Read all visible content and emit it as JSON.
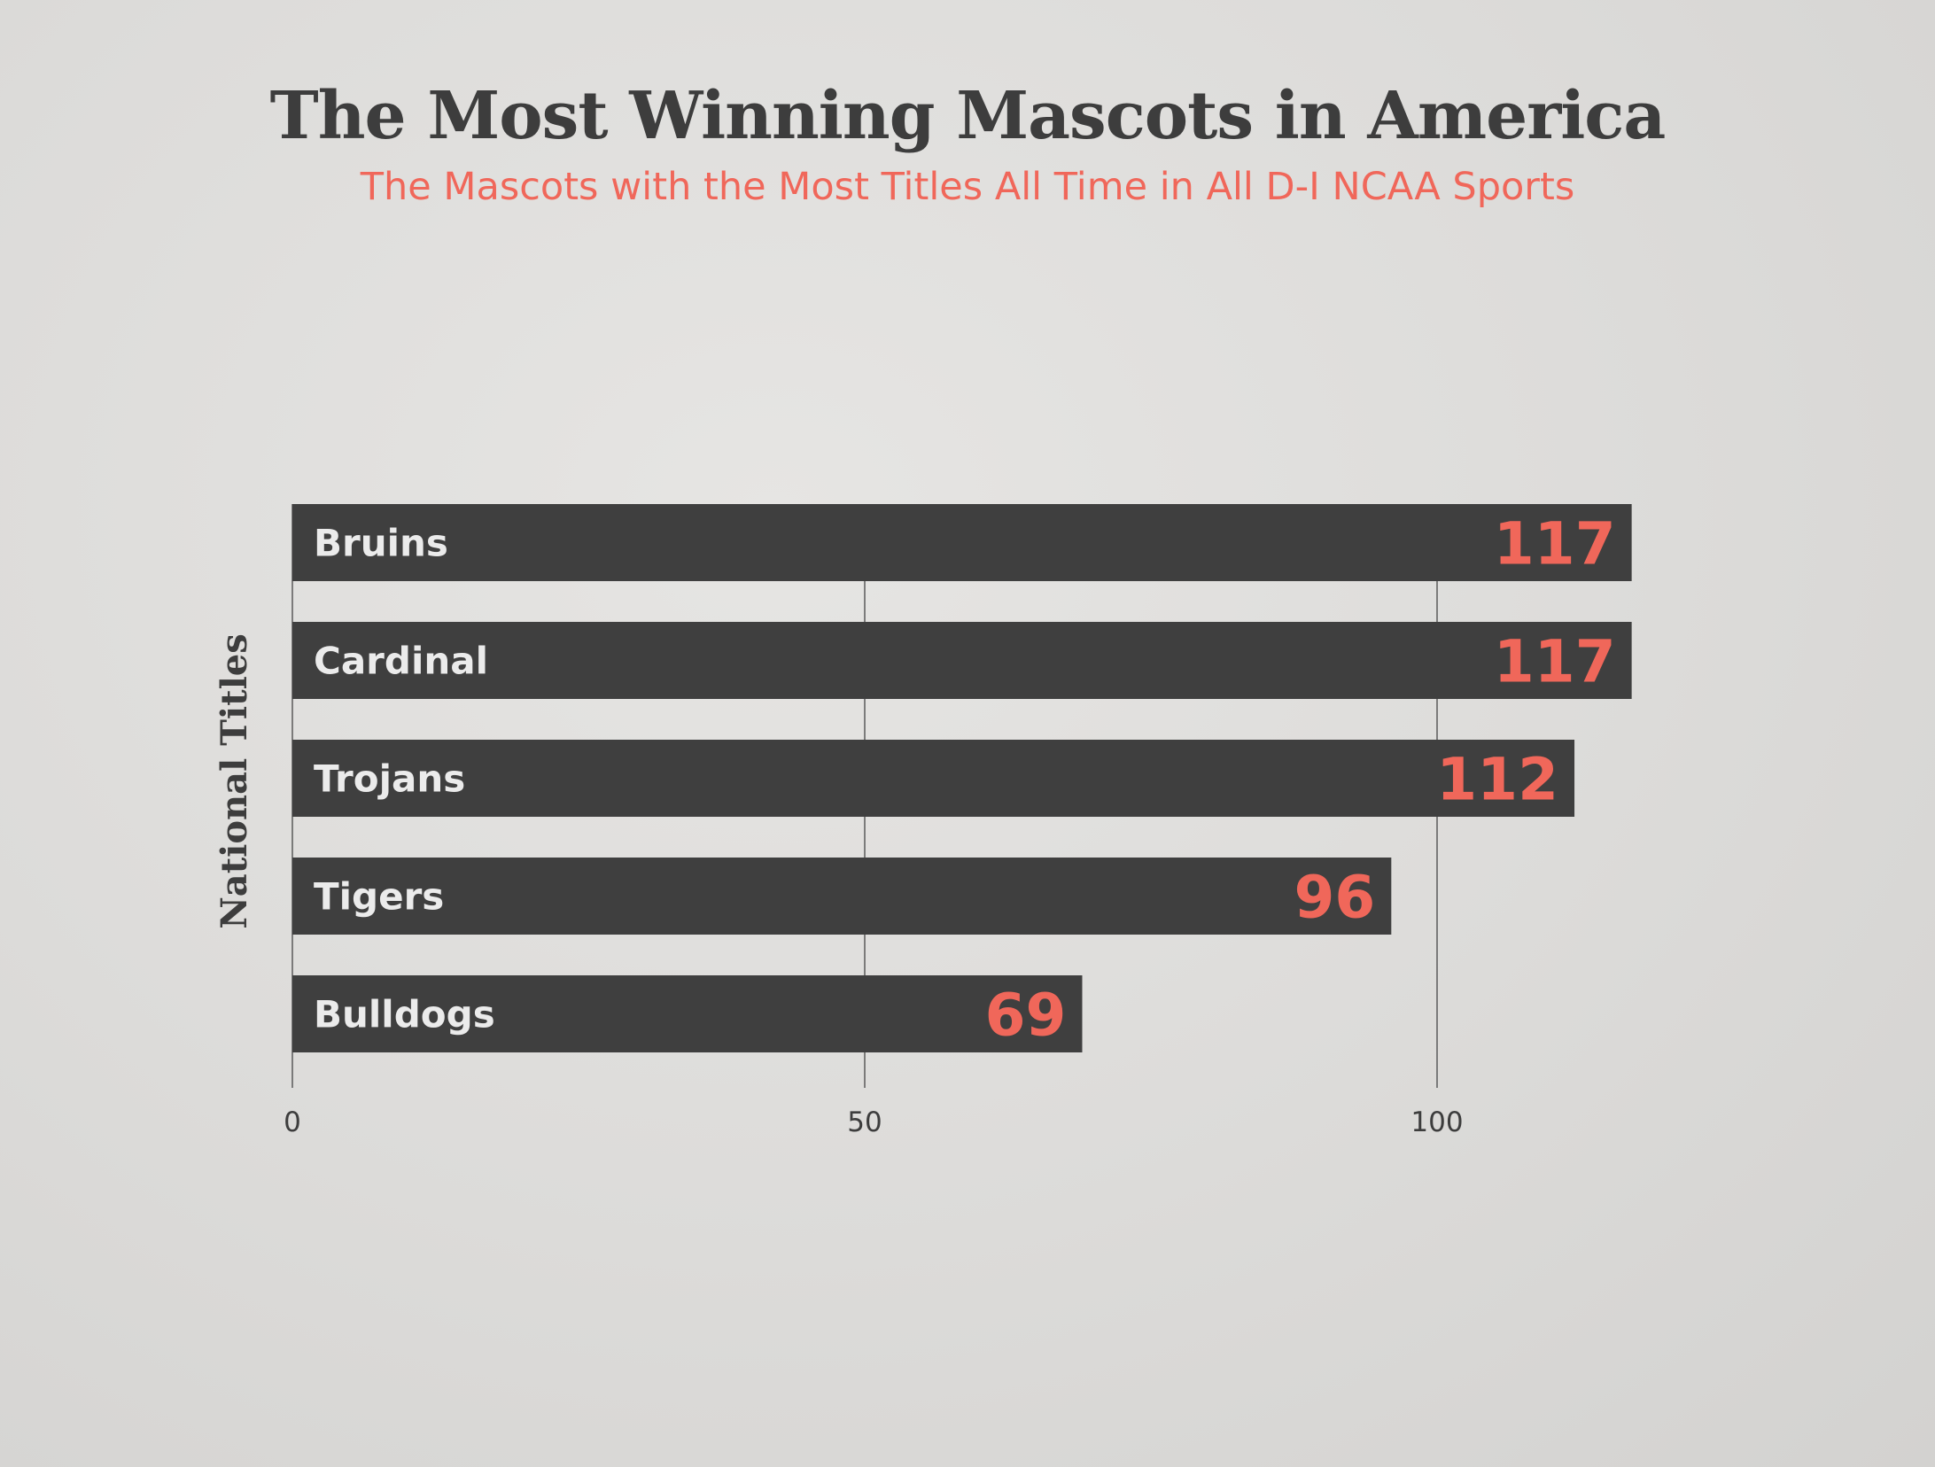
{
  "chart_data": {
    "type": "bar",
    "orientation": "horizontal",
    "title": "The Most Winning Mascots in America",
    "subtitle": "The Mascots with the Most Titles All Time in All D-I NCAA Sports",
    "xlabel": "",
    "ylabel": "National Titles",
    "categories": [
      "Bruins",
      "Cardinal",
      "Trojans",
      "Tigers",
      "Bulldogs"
    ],
    "values": [
      117,
      117,
      112,
      96,
      69
    ],
    "data_labels": [
      "117",
      "117",
      "112",
      "96",
      "69"
    ],
    "xlim": [
      0,
      120
    ],
    "xticks": [
      0,
      50,
      100
    ],
    "xtick_labels": [
      "0",
      "50",
      "100"
    ],
    "grid": "vertical",
    "legend": "none",
    "colors": {
      "bar": "#3f3f3f",
      "value_label": "#f0675a",
      "category_label": "#ebebeb",
      "title": "#3d3d3d",
      "subtitle": "#f0675a",
      "grid": "#5a5a5a"
    }
  }
}
